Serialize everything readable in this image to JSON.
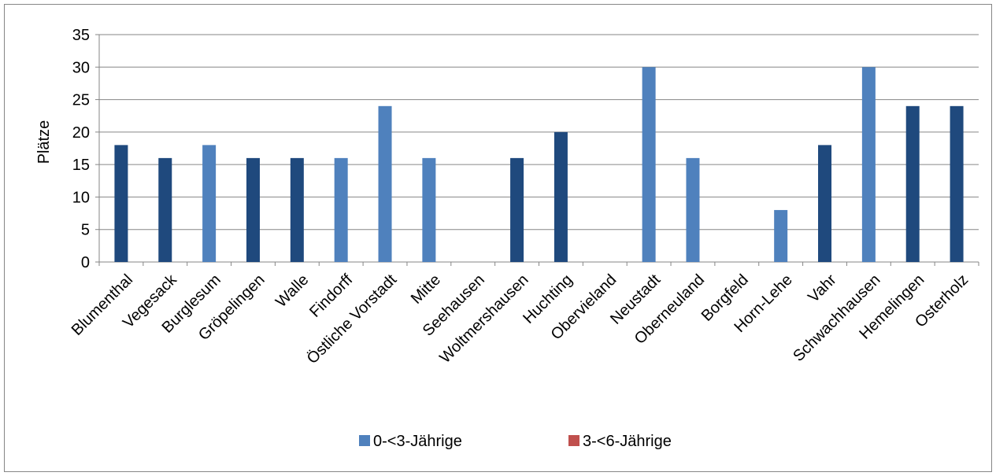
{
  "chart_data": {
    "type": "bar",
    "title": "",
    "xlabel": "",
    "ylabel": "Plätze",
    "ylim": [
      0,
      35
    ],
    "yticks": [
      0,
      5,
      10,
      15,
      20,
      25,
      30,
      35
    ],
    "grid": true,
    "legend_position": "bottom",
    "categories": [
      "Blumenthal",
      "Vegesack",
      "Burglesum",
      "Gröpelingen",
      "Walle",
      "Findorff",
      "Östliche Vorstadt",
      "Mitte",
      "Seehausen",
      "Woltmershausen",
      "Huchting",
      "Obervieland",
      "Neustadt",
      "Oberneuland",
      "Borgfeld",
      "Horn-Lehe",
      "Vahr",
      "Schwachhausen",
      "Hemelingen",
      "Osterholz"
    ],
    "values": [
      18,
      16,
      18,
      16,
      16,
      16,
      24,
      16,
      0,
      16,
      20,
      0,
      30,
      16,
      0,
      8,
      18,
      30,
      24,
      24
    ],
    "bar_shades": [
      "dark",
      "dark",
      "light",
      "dark",
      "dark",
      "light",
      "light",
      "light",
      "dark",
      "dark",
      "dark",
      "dark",
      "light",
      "light",
      "light",
      "light",
      "dark",
      "light",
      "dark",
      "dark"
    ],
    "colors": {
      "light": "#4f81bd",
      "dark": "#1f497d"
    },
    "legend": [
      {
        "name": "0-<3-Jährige",
        "color": "#4f81bd"
      },
      {
        "name": "3-<6-Jährige",
        "color": "#c0504d"
      }
    ]
  }
}
